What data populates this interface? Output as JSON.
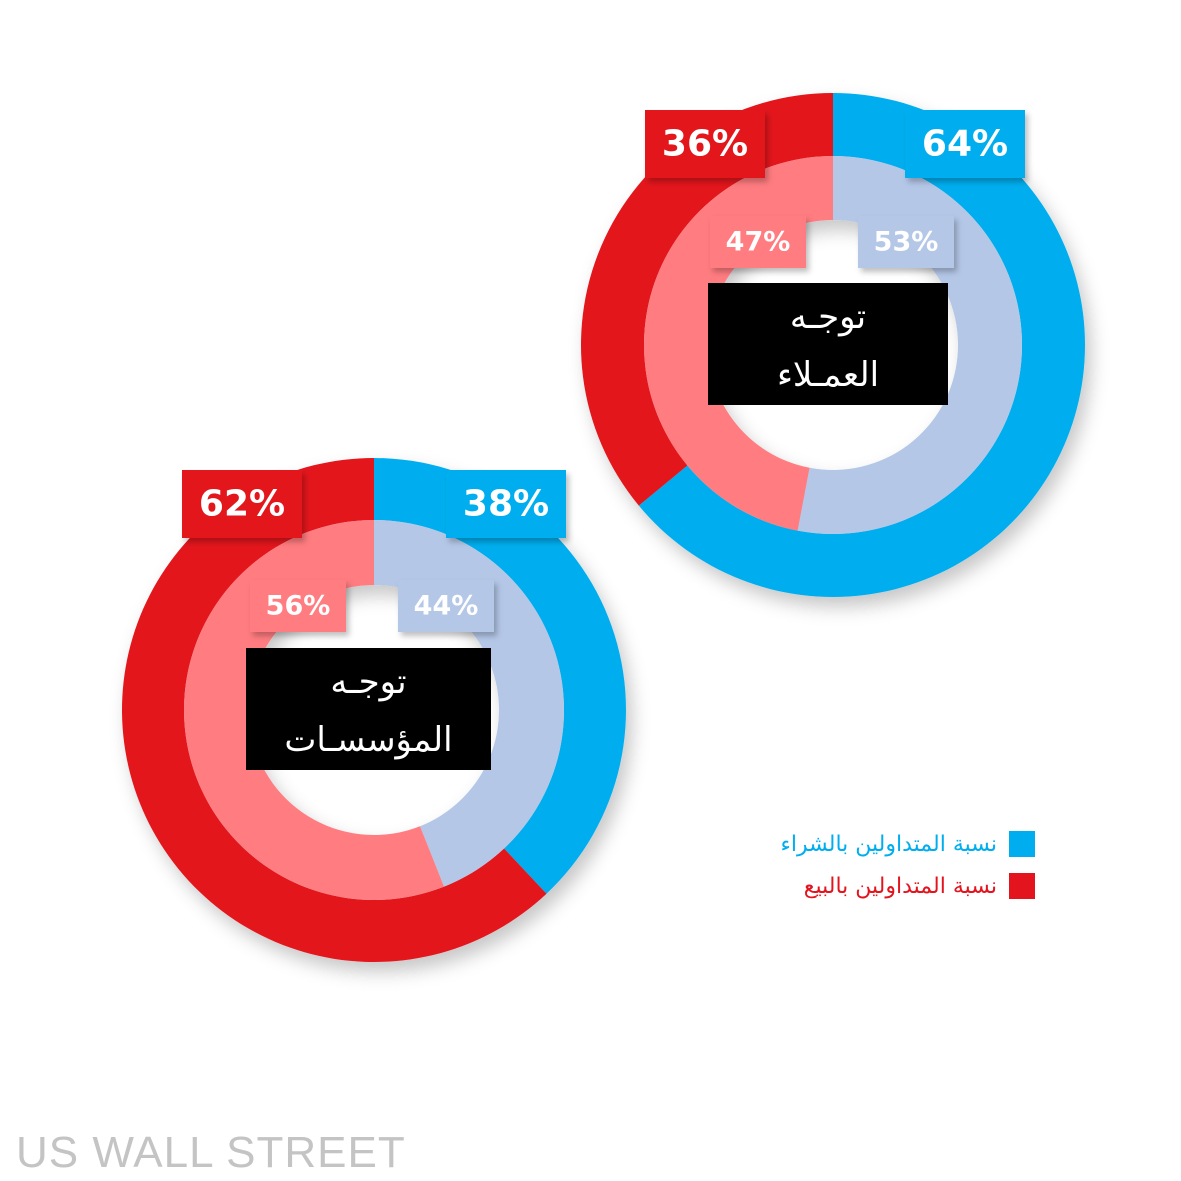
{
  "colors": {
    "buy_outer": "#00AEEF",
    "buy_inner": "#B4C7E7",
    "sell_outer": "#E3141E",
    "sell_inner": "#FF7C80",
    "center_bg": "#000000"
  },
  "chart_data": [
    {
      "type": "pie",
      "center_label_line1": "توجـه",
      "center_label_line2": "العمـلاء",
      "outer": {
        "buy": 64,
        "sell": 36,
        "buy_label": "64%",
        "sell_label": "36%"
      },
      "inner": {
        "buy": 53,
        "sell": 47,
        "buy_label": "53%",
        "sell_label": "47%"
      }
    },
    {
      "type": "pie",
      "center_label_line1": "توجـه",
      "center_label_line2": "المؤسسـات",
      "outer": {
        "buy": 38,
        "sell": 62,
        "buy_label": "38%",
        "sell_label": "62%"
      },
      "inner": {
        "buy": 44,
        "sell": 56,
        "buy_label": "44%",
        "sell_label": "56%"
      }
    }
  ],
  "legend": {
    "items": [
      {
        "label": "نسبة المتداولين بالشراء",
        "color": "#00AEEF"
      },
      {
        "label": "نسبة المتداولين بالبيع",
        "color": "#E3141E"
      }
    ]
  },
  "watermark": "US WALL STREET"
}
